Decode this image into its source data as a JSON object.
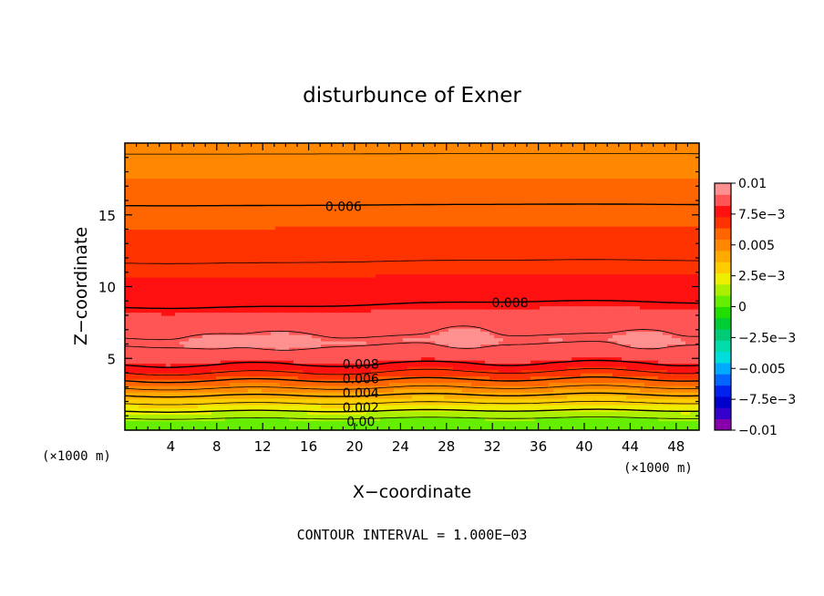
{
  "chart_data": {
    "type": "contour",
    "title": "disturbunce of Exner",
    "xlabel": "X−coordinate",
    "ylabel": "Z−coordinate",
    "x_unit": "(×1000 m)",
    "y_unit": "(×1000 m)",
    "xlim": [
      0,
      50
    ],
    "ylim": [
      0,
      20
    ],
    "x_ticks": [
      4,
      8,
      12,
      16,
      20,
      24,
      28,
      32,
      36,
      40,
      44,
      48
    ],
    "y_ticks": [
      5,
      10,
      15
    ],
    "footer": "CONTOUR INTERVAL = 1.000E−03",
    "contour_interval": 0.001,
    "colorbar": {
      "range": [
        -0.01,
        0.01
      ],
      "labels": [
        {
          "value": 0.01,
          "text": "0.01"
        },
        {
          "value": 0.0075,
          "text": "7.5e−3"
        },
        {
          "value": 0.005,
          "text": "0.005"
        },
        {
          "value": 0.0025,
          "text": "2.5e−3"
        },
        {
          "value": 0,
          "text": "0"
        },
        {
          "value": -0.0025,
          "text": "−2.5e−3"
        },
        {
          "value": -0.005,
          "text": "−0.005"
        },
        {
          "value": -0.0075,
          "text": "−7.5e−3"
        },
        {
          "value": -0.01,
          "text": "−0.01"
        }
      ],
      "colors": [
        "#8800aa",
        "#3300cc",
        "#0000cc",
        "#0022ee",
        "#0066ff",
        "#00aaff",
        "#00dddd",
        "#00ddaa",
        "#00cc77",
        "#00cc33",
        "#22dd00",
        "#66ee00",
        "#aaf000",
        "#eeee00",
        "#ffcc00",
        "#ffaa00",
        "#ff8800",
        "#ff6600",
        "#ff3300",
        "#ff1111",
        "#ff5555",
        "#ff9090"
      ]
    },
    "contour_labels": [
      {
        "text": "0.006",
        "x": 16.5,
        "z": 15.6
      },
      {
        "text": "0.008",
        "x": 31.0,
        "z": 8.9
      },
      {
        "text": "0.008",
        "x": 18.0,
        "z": 4.6
      },
      {
        "text": "0.006",
        "x": 18.0,
        "z": 3.6
      },
      {
        "text": "0.004",
        "x": 18.0,
        "z": 2.6
      },
      {
        "text": "0.002",
        "x": 18.0,
        "z": 1.6
      },
      {
        "text": "0.00",
        "x": 18.0,
        "z": 0.6
      }
    ]
  }
}
